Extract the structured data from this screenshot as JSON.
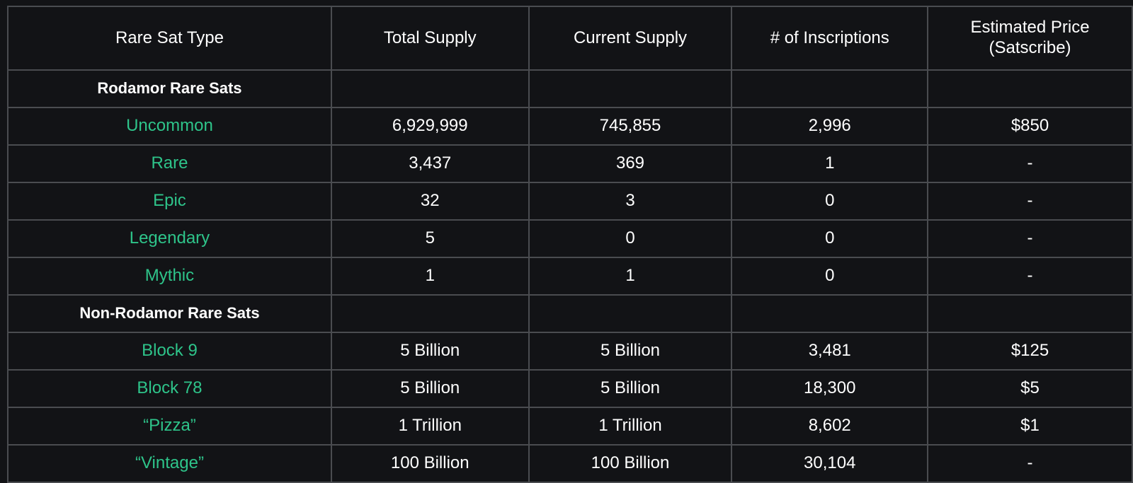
{
  "table": {
    "headers": [
      "Rare Sat Type",
      "Total Supply",
      "Current Supply",
      "# of Inscriptions",
      "Estimated Price (Satscribe)"
    ],
    "sections": [
      {
        "title": "Rodamor Rare Sats",
        "rows": [
          {
            "type": "Uncommon",
            "total": "6,929,999",
            "current": "745,855",
            "inscriptions": "2,996",
            "price": "$850"
          },
          {
            "type": "Rare",
            "total": "3,437",
            "current": "369",
            "inscriptions": "1",
            "price": "-"
          },
          {
            "type": "Epic",
            "total": "32",
            "current": "3",
            "inscriptions": "0",
            "price": "-"
          },
          {
            "type": "Legendary",
            "total": "5",
            "current": "0",
            "inscriptions": "0",
            "price": "-"
          },
          {
            "type": "Mythic",
            "total": "1",
            "current": "1",
            "inscriptions": "0",
            "price": "-"
          }
        ]
      },
      {
        "title": "Non-Rodamor Rare Sats",
        "rows": [
          {
            "type": "Block 9",
            "total": "5 Billion",
            "current": "5 Billion",
            "inscriptions": "3,481",
            "price": "$125"
          },
          {
            "type": "Block 78",
            "total": "5 Billion",
            "current": "5 Billion",
            "inscriptions": "18,300",
            "price": "$5"
          },
          {
            "type": "“Pizza”",
            "total": "1 Trillion",
            "current": "1 Trillion",
            "inscriptions": "8,602",
            "price": "$1"
          },
          {
            "type": "“Vintage”",
            "total": "100 Billion",
            "current": "100 Billion",
            "inscriptions": "30,104",
            "price": "-"
          }
        ]
      }
    ]
  },
  "colors": {
    "background": "#121316",
    "grid": "#4a4c50",
    "text": "#ffffff",
    "accent_name": "#2ec48a"
  }
}
